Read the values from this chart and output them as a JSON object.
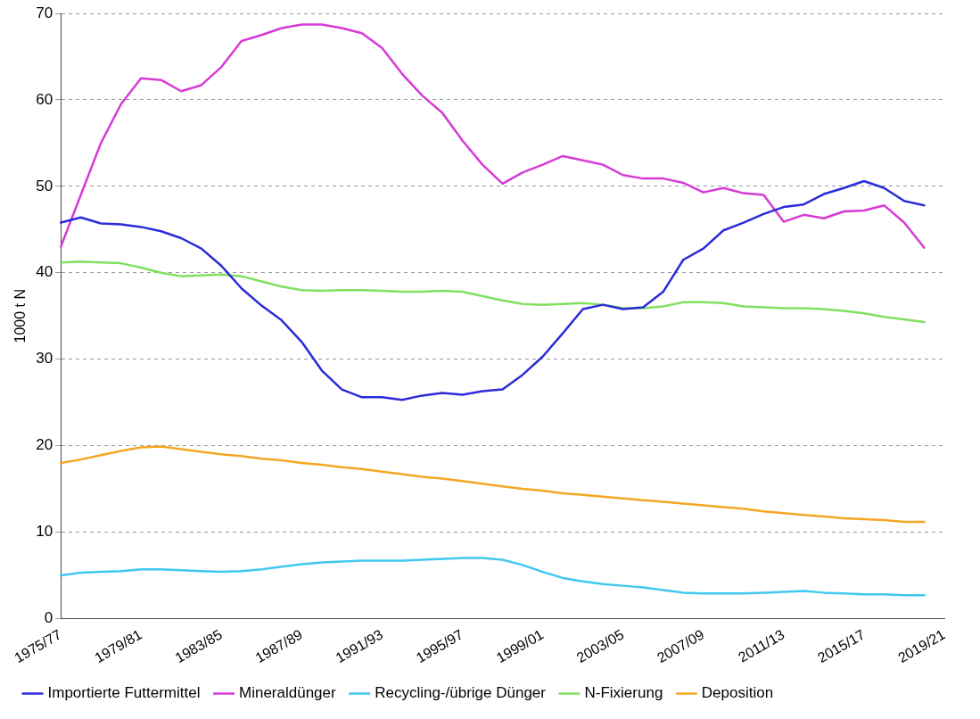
{
  "chart_data": {
    "type": "line",
    "ylabel": "1000 t N",
    "categories": [
      "1975/77",
      null,
      null,
      null,
      "1979/81",
      null,
      null,
      null,
      "1983/85",
      null,
      null,
      null,
      "1987/89",
      null,
      null,
      null,
      "1991/93",
      null,
      null,
      null,
      "1995/97",
      null,
      null,
      null,
      "1999/01",
      null,
      null,
      null,
      "2003/05",
      null,
      null,
      null,
      "2007/09",
      null,
      null,
      null,
      "2011/13",
      null,
      null,
      null,
      "2015/17",
      null,
      null,
      null,
      "2019/21"
    ],
    "ylim": [
      0,
      70
    ],
    "yticks": [
      0,
      10,
      20,
      30,
      40,
      50,
      60,
      70
    ],
    "grid": "y",
    "legend": "bottom",
    "marker": "none",
    "line_style": "solid",
    "series": [
      {
        "name": "Importierte Futtermittel",
        "color": "#2b2bdb",
        "values": [
          45.8,
          46.4,
          45.7,
          45.6,
          45.3,
          44.8,
          44.0,
          42.8,
          40.8,
          38.2,
          36.2,
          34.5,
          32.0,
          28.7,
          26.5,
          25.6,
          25.6,
          25.3,
          25.8,
          26.1,
          25.9,
          26.3,
          26.5,
          28.2,
          30.3,
          33.0,
          35.8,
          36.3,
          35.8,
          36.0,
          37.8,
          41.5,
          42.8,
          44.9,
          45.8,
          46.8,
          47.6,
          47.9,
          49.1,
          49.8,
          50.6,
          49.8,
          48.3,
          47.8,
          null
        ]
      },
      {
        "name": "Mineraldünger",
        "color": "#d63ad6",
        "values": [
          43.0,
          49.0,
          55.0,
          59.5,
          62.5,
          62.3,
          61.0,
          61.7,
          63.8,
          66.8,
          67.5,
          68.3,
          68.7,
          68.7,
          68.3,
          67.7,
          66.0,
          63.0,
          60.5,
          58.5,
          55.3,
          52.5,
          50.3,
          51.6,
          52.5,
          53.5,
          53.0,
          52.5,
          51.3,
          50.9,
          50.9,
          50.4,
          49.3,
          49.8,
          49.2,
          49.0,
          45.9,
          46.7,
          46.3,
          47.1,
          47.2,
          47.8,
          45.8,
          42.9,
          null
        ]
      },
      {
        "name": "Recycling-/übrige Dünger",
        "color": "#40c8f0",
        "values": [
          5.0,
          5.3,
          5.4,
          5.5,
          5.7,
          5.7,
          5.6,
          5.5,
          5.4,
          5.5,
          5.7,
          6.0,
          6.3,
          6.5,
          6.6,
          6.7,
          6.7,
          6.7,
          6.8,
          6.9,
          7.0,
          7.0,
          6.8,
          6.2,
          5.4,
          4.7,
          4.3,
          4.0,
          3.8,
          3.6,
          3.3,
          3.0,
          2.9,
          2.9,
          2.9,
          3.0,
          3.1,
          3.2,
          3.0,
          2.9,
          2.8,
          2.8,
          2.7,
          2.7,
          null
        ]
      },
      {
        "name": "N-Fixierung",
        "color": "#80e060",
        "values": [
          41.2,
          41.3,
          41.2,
          41.1,
          40.6,
          40.0,
          39.6,
          39.7,
          39.8,
          39.6,
          39.0,
          38.4,
          38.0,
          37.9,
          38.0,
          38.0,
          37.9,
          37.8,
          37.8,
          37.9,
          37.8,
          37.3,
          36.8,
          36.4,
          36.3,
          36.4,
          36.5,
          36.3,
          35.9,
          35.9,
          36.1,
          36.6,
          36.6,
          36.5,
          36.1,
          36.0,
          35.9,
          35.9,
          35.8,
          35.6,
          35.3,
          34.9,
          34.6,
          34.3,
          null
        ]
      },
      {
        "name": "Deposition",
        "color": "#f5a623",
        "values": [
          18.0,
          18.4,
          18.9,
          19.4,
          19.8,
          19.9,
          19.6,
          19.3,
          19.0,
          18.8,
          18.5,
          18.3,
          18.0,
          17.8,
          17.5,
          17.3,
          17.0,
          16.7,
          16.4,
          16.2,
          15.9,
          15.6,
          15.3,
          15.0,
          14.8,
          14.5,
          14.3,
          14.1,
          13.9,
          13.7,
          13.5,
          13.3,
          13.1,
          12.9,
          12.7,
          12.4,
          12.2,
          12.0,
          11.8,
          11.6,
          11.5,
          11.4,
          11.2,
          11.2,
          null
        ]
      }
    ]
  }
}
